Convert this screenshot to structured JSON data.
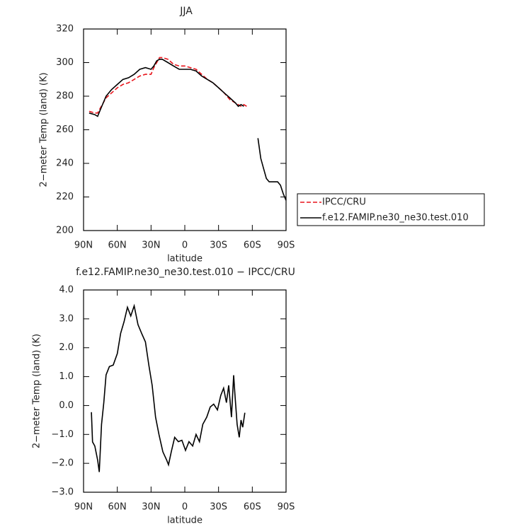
{
  "chart_data": [
    {
      "type": "line",
      "title": "JJA",
      "xlabel": "latitude",
      "ylabel": "2−meter Temp (land) (K)",
      "x": [
        85,
        80,
        77.5,
        75,
        72.5,
        70,
        65,
        60,
        55,
        50,
        45,
        40,
        35,
        30,
        27.5,
        25,
        22.5,
        20,
        15,
        10,
        5,
        0,
        -5,
        -10,
        -15,
        -20,
        -25,
        -30,
        -35,
        -40,
        -45,
        -47.5,
        -50,
        -52.5,
        -55,
        -60,
        -65,
        -67.5,
        -70,
        -72.5,
        -75,
        -77.5,
        -80,
        -82.5,
        -85,
        -87.5,
        -90
      ],
      "series": [
        {
          "name": "IPCC/CRU",
          "color": "#e8141b",
          "linestyle": "dashed",
          "values": [
            271,
            270,
            270,
            273,
            276,
            279,
            282,
            285,
            287,
            288,
            290,
            292,
            293,
            293,
            297,
            300,
            303,
            303,
            302,
            299,
            298,
            298,
            297,
            296,
            293,
            290,
            288,
            285,
            282,
            278,
            276,
            275,
            274,
            275,
            274,
            null,
            null,
            null,
            null,
            null,
            null,
            null,
            null,
            null,
            null,
            null,
            null
          ]
        },
        {
          "name": "f.e12.FAMIP.ne30_ne30.test.010",
          "color": "#000000",
          "linestyle": "solid",
          "values": [
            270,
            269,
            268,
            272,
            276,
            280,
            284,
            287,
            290,
            291,
            293,
            296,
            297,
            296,
            298,
            301,
            302,
            302,
            300,
            298,
            296,
            296,
            296,
            295,
            292,
            290,
            288,
            285,
            282,
            279,
            276,
            274,
            275,
            274,
            null,
            null,
            255,
            243,
            237,
            231,
            229,
            229,
            229,
            229,
            227,
            222,
            218
          ]
        }
      ],
      "xlim": [
        90,
        -90
      ],
      "xticks": [
        {
          "value": 90,
          "label": "90N"
        },
        {
          "value": 60,
          "label": "60N"
        },
        {
          "value": 30,
          "label": "30N"
        },
        0,
        {
          "value": -30,
          "label": "30S"
        },
        {
          "value": -60,
          "label": "60S"
        },
        {
          "value": -90,
          "label": "90S"
        }
      ],
      "ylim": [
        200,
        320
      ],
      "yticks": [
        200,
        220,
        240,
        260,
        280,
        300,
        320
      ],
      "legend": "outside-right"
    },
    {
      "type": "line",
      "title": "f.e12.FAMIP.ne30_ne30.test.010 − IPCC/CRU",
      "xlabel": "latitude",
      "ylabel": "2−meter Temp (land) (K)",
      "x": [
        83,
        82,
        80,
        77.4,
        76,
        74,
        72,
        70,
        67,
        63.6,
        60,
        57,
        54,
        51,
        48,
        45,
        41.6,
        38.4,
        35,
        32,
        29,
        26,
        23,
        19.5,
        16,
        14.5,
        12,
        9,
        5.7,
        2.6,
        -0.6,
        -3.7,
        -7,
        -10,
        -13,
        -16,
        -19.5,
        -22.6,
        -25.7,
        -29,
        -32,
        -34.5,
        -37,
        -39,
        -41.5,
        -43.4,
        -44.6,
        -46.5,
        -48.4,
        -50,
        -51.5,
        -53.4
      ],
      "values": [
        -0.23,
        -1.26,
        -1.4,
        -1.9,
        -2.3,
        -0.65,
        0.1,
        1.06,
        1.35,
        1.4,
        1.8,
        2.5,
        2.9,
        3.4,
        3.1,
        3.45,
        2.8,
        2.5,
        2.2,
        1.4,
        0.7,
        -0.4,
        -1.0,
        -1.6,
        -1.9,
        -2.05,
        -1.6,
        -1.1,
        -1.25,
        -1.2,
        -1.55,
        -1.25,
        -1.4,
        -1.0,
        -1.25,
        -0.65,
        -0.4,
        -0.05,
        0.05,
        -0.15,
        0.35,
        0.6,
        0.1,
        0.7,
        -0.4,
        1.05,
        0.35,
        -0.65,
        -1.1,
        -0.5,
        -0.75,
        -0.25
      ],
      "color": "#000000",
      "xlim": [
        90,
        -90
      ],
      "xticks": [
        {
          "value": 90,
          "label": "90N"
        },
        {
          "value": 60,
          "label": "60N"
        },
        {
          "value": 30,
          "label": "30N"
        },
        0,
        {
          "value": -30,
          "label": "30S"
        },
        {
          "value": -60,
          "label": "60S"
        },
        {
          "value": -90,
          "label": "90S"
        }
      ],
      "ylim": [
        -3,
        4
      ],
      "yticks": [
        {
          "value": -3,
          "label": "−3.0"
        },
        {
          "value": -2,
          "label": "−2.0"
        },
        {
          "value": -1,
          "label": "−1.0"
        },
        {
          "value": 0,
          "label": "0.0"
        },
        {
          "value": 1,
          "label": "1.0"
        },
        {
          "value": 2,
          "label": "2.0"
        },
        {
          "value": 3,
          "label": "3.0"
        },
        {
          "value": 4,
          "label": "4.0"
        }
      ]
    }
  ]
}
